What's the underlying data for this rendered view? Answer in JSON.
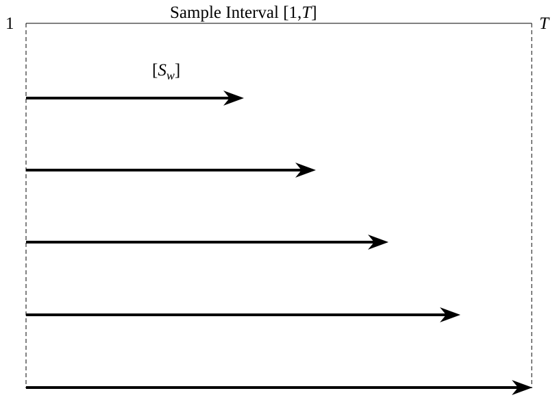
{
  "title": {
    "prefix": "Sample Interval [1,",
    "var": "T",
    "suffix": "]"
  },
  "start_label": "1",
  "end_label": "T",
  "window_label": {
    "open": "[",
    "symbol": "S",
    "subscript": "w",
    "close": "]"
  },
  "colors": {
    "line": "#000000",
    "background": "#ffffff"
  }
}
